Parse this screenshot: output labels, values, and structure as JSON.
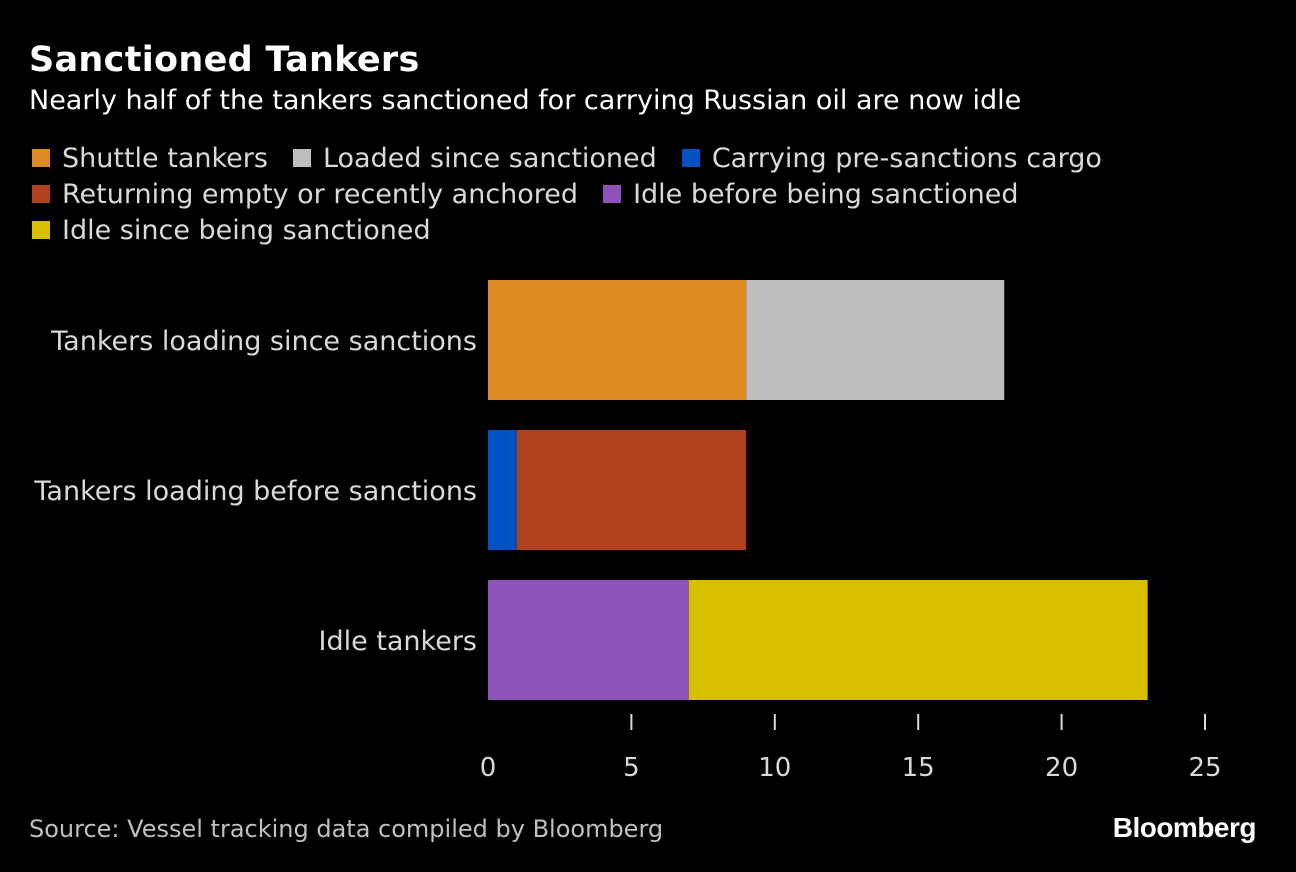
{
  "header": {
    "title": "Sanctioned Tankers",
    "subtitle": "Nearly half of the tankers sanctioned for carrying Russian oil are now idle"
  },
  "legend": [
    [
      {
        "label": "Shuttle tankers",
        "color": "#dd8a24"
      },
      {
        "label": "Loaded since sanctioned",
        "color": "#bdbdbd"
      },
      {
        "label": "Carrying pre-sanctions cargo",
        "color": "#0052c4"
      }
    ],
    [
      {
        "label": "Returning empty or recently anchored",
        "color": "#b0401e"
      },
      {
        "label": "Idle before being sanctioned",
        "color": "#8f52b8"
      }
    ],
    [
      {
        "label": "Idle since being sanctioned",
        "color": "#d8bf00"
      }
    ]
  ],
  "chart_data": {
    "type": "bar",
    "orientation": "horizontal",
    "stacked": true,
    "categories": [
      "Tankers loading since sanctions",
      "Tankers loading before sanctions",
      "Idle tankers"
    ],
    "series": [
      {
        "name": "Shuttle tankers",
        "color": "#dd8a24",
        "values": [
          9,
          0,
          0
        ]
      },
      {
        "name": "Loaded since sanctioned",
        "color": "#bdbdbd",
        "values": [
          9,
          0,
          0
        ]
      },
      {
        "name": "Carrying pre-sanctions cargo",
        "color": "#0052c4",
        "values": [
          0,
          1,
          0
        ]
      },
      {
        "name": "Returning empty or recently anchored",
        "color": "#b0401e",
        "values": [
          0,
          8,
          0
        ]
      },
      {
        "name": "Idle before being sanctioned",
        "color": "#8f52b8",
        "values": [
          0,
          0,
          7
        ]
      },
      {
        "name": "Idle since being sanctioned",
        "color": "#d8bf00",
        "values": [
          0,
          0,
          16
        ]
      }
    ],
    "xlim": [
      0,
      25
    ],
    "xticks": [
      "0",
      "5",
      "10",
      "15",
      "20",
      "25"
    ],
    "xtick_values": [
      0,
      5,
      10,
      15,
      20,
      25
    ],
    "grid": false,
    "legend_position": "top"
  },
  "footer": {
    "source": "Source: Vessel tracking data compiled by Bloomberg",
    "logo": "Bloomberg"
  }
}
